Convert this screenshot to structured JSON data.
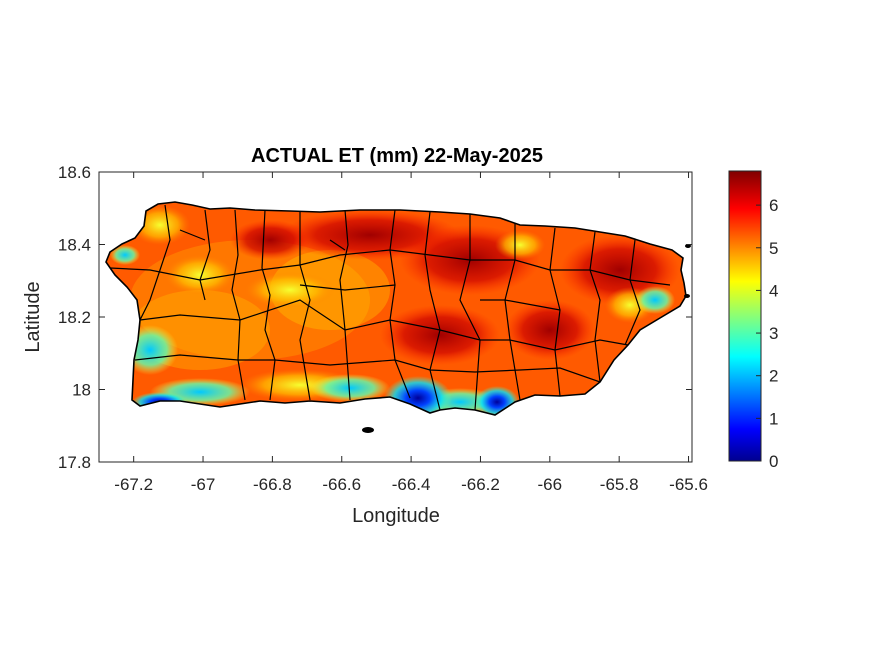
{
  "figure": {
    "title": "ACTUAL ET (mm) 22-May-2025",
    "xlabel": "Longitude",
    "ylabel": "Latitude"
  },
  "map": {
    "xlim": [
      -67.3,
      -65.59
    ],
    "ylim": [
      17.8,
      18.6
    ],
    "x_ticks": [
      "-67.2",
      "-67",
      "-66.8",
      "-66.6",
      "-66.4",
      "-66.2",
      "-66",
      "-65.8",
      "-65.6"
    ],
    "x_tick_values": [
      -67.2,
      -67.0,
      -66.8,
      -66.6,
      -66.4,
      -66.2,
      -66.0,
      -65.8,
      -65.6
    ],
    "y_ticks": [
      "18.6",
      "18.4",
      "18.2",
      "18"
    ],
    "y_tick_values": [
      18.6,
      18.4,
      18.2,
      18.0
    ],
    "y_bottom_tick": "17.8",
    "y_bottom_value": 17.8,
    "region": "Puerto Rico municipalities",
    "field_description": "gridded actual evapotranspiration"
  },
  "colorbar": {
    "colormap": "jet",
    "limits": [
      0,
      6.8
    ],
    "ticks": [
      "0",
      "1",
      "2",
      "3",
      "4",
      "5",
      "6"
    ],
    "tick_values": [
      0,
      1,
      2,
      3,
      4,
      5,
      6
    ]
  },
  "colors": {
    "axis": "#262626",
    "outline": "#000000"
  }
}
